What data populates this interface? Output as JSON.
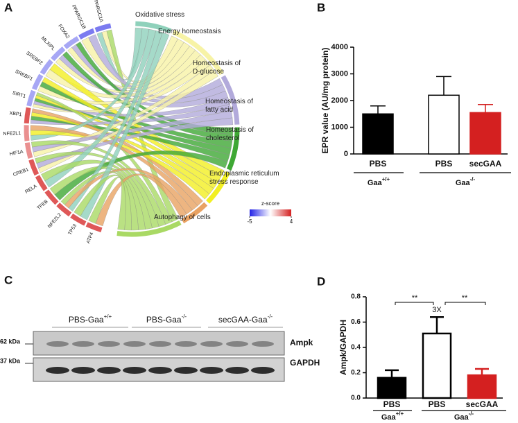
{
  "panel_labels": [
    "A",
    "B",
    "C",
    "D"
  ],
  "chord": {
    "genes": [
      {
        "name": "PPARGC1A",
        "zscore": -3,
        "terms": [
          0,
          1,
          6
        ]
      },
      {
        "name": "PPARGC1B",
        "zscore": -3,
        "terms": [
          1,
          2
        ]
      },
      {
        "name": "FOXA2",
        "zscore": -2,
        "terms": [
          1,
          2,
          3
        ]
      },
      {
        "name": "MLXIPL",
        "zscore": -2,
        "terms": [
          1,
          2,
          3
        ]
      },
      {
        "name": "SREBF2",
        "zscore": -2,
        "terms": [
          1,
          4
        ]
      },
      {
        "name": "SREBF1",
        "zscore": -2,
        "terms": [
          1,
          3,
          4
        ]
      },
      {
        "name": "SIRT1",
        "zscore": -2,
        "terms": [
          1,
          2,
          3,
          4,
          6
        ]
      },
      {
        "name": "XBP1",
        "zscore": 3,
        "terms": [
          2,
          3,
          4,
          5
        ]
      },
      {
        "name": "NFE2L1",
        "zscore": 2,
        "terms": [
          0,
          4,
          5
        ]
      },
      {
        "name": "HIF1A",
        "zscore": 2,
        "terms": [
          1,
          2,
          6
        ]
      },
      {
        "name": "CREB1",
        "zscore": 3,
        "terms": [
          1,
          2,
          6
        ]
      },
      {
        "name": "RELA",
        "zscore": 3,
        "terms": [
          0,
          6
        ]
      },
      {
        "name": "TFEB",
        "zscore": 3,
        "terms": [
          3,
          6
        ]
      },
      {
        "name": "NFE2L2",
        "zscore": 3,
        "terms": [
          0,
          5,
          6
        ]
      },
      {
        "name": "TP53",
        "zscore": 3,
        "terms": [
          0,
          6
        ]
      },
      {
        "name": "ATF4",
        "zscore": 3,
        "terms": [
          5,
          6
        ]
      }
    ],
    "terms": [
      {
        "label": "Oxidative stress",
        "color": "#8fd1bb"
      },
      {
        "label": "Energy homeostasis",
        "color": "#f7f3a6"
      },
      {
        "label": "Homeostasis of\nD-glucose",
        "color": "#b2aadb"
      },
      {
        "label": "Homeostasis of\nfatty acid",
        "color": "#3ea834"
      },
      {
        "label": "Homeostasis of\ncholesterol",
        "color": "#f2ef22"
      },
      {
        "label": "Endoplasmic reticulum\nstress response",
        "color": "#e9a262"
      },
      {
        "label": "Autophagy of cells",
        "color": "#a9d964"
      }
    ],
    "legend": {
      "title": "z-score",
      "lim": [
        -5,
        4
      ],
      "ticks": [
        -5,
        4
      ],
      "colors": [
        "#2323e6",
        "#ffffff",
        "#d42020"
      ]
    }
  },
  "chart_data": [
    {
      "type": "bar",
      "ylabel": "EPR value (AU/mg protein)",
      "categories": [
        "PBS",
        "PBS",
        "secGAA"
      ],
      "values": [
        1500,
        2200,
        1550
      ],
      "errors": [
        300,
        700,
        300
      ],
      "colors": [
        "#000000",
        "#ffffff",
        "#d42020"
      ],
      "ylim": [
        0,
        4000
      ],
      "yticks": [
        0,
        1000,
        2000,
        3000,
        4000
      ],
      "groups": [
        {
          "label": "Gaa",
          "sup": "+/+"
        },
        {
          "label": "Gaa",
          "sup": "-/-"
        }
      ]
    },
    {
      "type": "bar",
      "ylabel": "Ampk/GAPDH",
      "categories": [
        "PBS",
        "PBS",
        "secGAA"
      ],
      "values": [
        0.16,
        0.51,
        0.18
      ],
      "errors": [
        0.06,
        0.13,
        0.05
      ],
      "colors": [
        "#000000",
        "#ffffff",
        "#d42020"
      ],
      "ylim": [
        0,
        0.8
      ],
      "yticks": [
        {
          "value": 0,
          "label": "0.0"
        },
        0.2,
        0.4,
        0.6,
        0.8
      ],
      "groups": [
        {
          "label": "Gaa",
          "sup": "+/+"
        },
        {
          "label": "Gaa",
          "sup": "-/-"
        }
      ],
      "annotations": [
        "**",
        "**",
        "3X"
      ]
    }
  ],
  "blot": {
    "headers": [
      {
        "label": "PBS-Gaa",
        "sup": "+/+"
      },
      {
        "label": "PBS-Gaa",
        "sup": "-/-"
      },
      {
        "label": "secGAA-Gaa",
        "sup": "-/-"
      }
    ],
    "markers": [
      "62 kDa",
      "37 kDa"
    ],
    "proteins": [
      "Ampk",
      "GAPDH"
    ]
  }
}
